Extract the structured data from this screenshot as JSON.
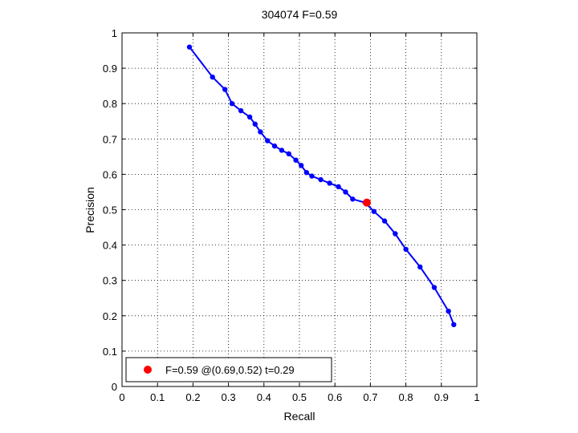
{
  "chart_data": {
    "type": "line",
    "title": "304074 F=0.59",
    "xlabel": "Recall",
    "ylabel": "Precision",
    "xlim": [
      0,
      1
    ],
    "ylim": [
      0,
      1
    ],
    "xticks": [
      "0",
      "0.1",
      "0.2",
      "0.3",
      "0.4",
      "0.5",
      "0.6",
      "0.7",
      "0.8",
      "0.9",
      "1"
    ],
    "yticks": [
      "0",
      "0.1",
      "0.2",
      "0.3",
      "0.4",
      "0.5",
      "0.6",
      "0.7",
      "0.8",
      "0.9",
      "1"
    ],
    "grid": true,
    "legend_position": "bottom-left",
    "series": [
      {
        "color": "#0000ff",
        "x": [
          0.19,
          0.255,
          0.29,
          0.31,
          0.335,
          0.36,
          0.375,
          0.39,
          0.41,
          0.43,
          0.45,
          0.47,
          0.49,
          0.505,
          0.52,
          0.535,
          0.56,
          0.585,
          0.61,
          0.63,
          0.65,
          0.685,
          0.71,
          0.74,
          0.77,
          0.8,
          0.84,
          0.88,
          0.92,
          0.935
        ],
        "y": [
          0.96,
          0.875,
          0.84,
          0.8,
          0.78,
          0.762,
          0.742,
          0.72,
          0.695,
          0.68,
          0.668,
          0.658,
          0.64,
          0.625,
          0.605,
          0.595,
          0.585,
          0.575,
          0.565,
          0.55,
          0.53,
          0.52,
          0.495,
          0.468,
          0.432,
          0.388,
          0.338,
          0.28,
          0.213,
          0.175
        ]
      }
    ],
    "best_point": {
      "x": 0.69,
      "y": 0.52,
      "color": "#ff0000"
    },
    "legend": {
      "label": "F=0.59 @(0.69,0.52) t=0.29"
    }
  }
}
